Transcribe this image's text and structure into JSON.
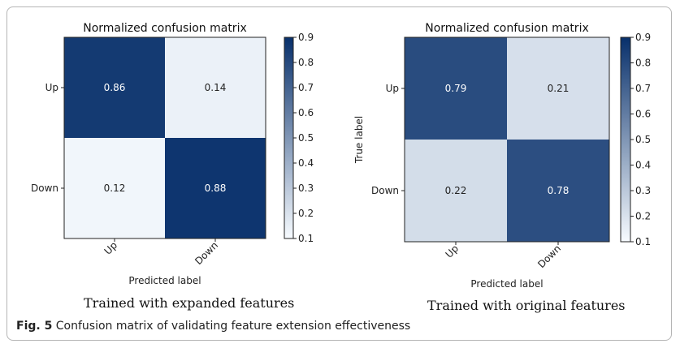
{
  "figure_caption": {
    "label": "Fig. 5",
    "text": "Confusion matrix of validating feature extension effectiveness"
  },
  "chart_data": [
    {
      "type": "heatmap",
      "title": "Normalized confusion matrix",
      "xlabel": "Predicted label",
      "ylabel": "",
      "row_labels": [
        "Up",
        "Down"
      ],
      "col_labels": [
        "Up",
        "Down"
      ],
      "values": [
        [
          0.86,
          0.14
        ],
        [
          0.12,
          0.88
        ]
      ],
      "colorbar": {
        "min": 0.1,
        "max": 0.9,
        "ticks": [
          "0.1",
          "0.2",
          "0.3",
          "0.4",
          "0.5",
          "0.6",
          "0.7",
          "0.8",
          "0.9"
        ]
      },
      "colormap": {
        "low": "#f7fbff",
        "high": "#08306b"
      },
      "caption": "Trained with expanded features"
    },
    {
      "type": "heatmap",
      "title": "Normalized confusion matrix",
      "xlabel": "Predicted label",
      "ylabel": "True label",
      "row_labels": [
        "Up",
        "Down"
      ],
      "col_labels": [
        "Up",
        "Down"
      ],
      "values": [
        [
          0.79,
          0.21
        ],
        [
          0.22,
          0.78
        ]
      ],
      "colorbar": {
        "min": 0.1,
        "max": 0.9,
        "ticks": [
          "0.1",
          "0.2",
          "0.3",
          "0.4",
          "0.5",
          "0.6",
          "0.7",
          "0.8",
          "0.9"
        ]
      },
      "colormap": {
        "low": "#f7fbff",
        "high": "#08306b"
      },
      "caption": "Trained with original features"
    }
  ]
}
